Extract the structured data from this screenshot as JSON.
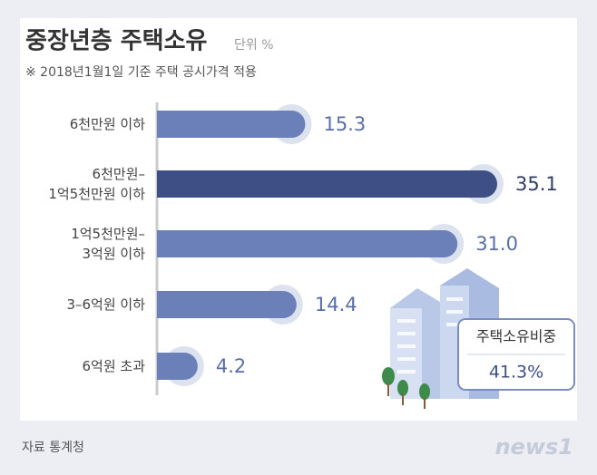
{
  "chart_data": {
    "type": "bar",
    "orientation": "horizontal",
    "title": "중장년층 주택소유",
    "unit": "단위 %",
    "subtitle": "※ 2018년1월1일 기준 주택 공시가격 적용",
    "categories": [
      "6천만원 이하",
      "6천만원–\n1억5천만원 이하",
      "1억5천만원–\n3억원 이하",
      "3–6억원 이하",
      "6억원 초과"
    ],
    "values": [
      15.3,
      35.1,
      31.0,
      14.4,
      4.2
    ],
    "value_labels": [
      "15.3",
      "35.1",
      "31.0",
      "14.4",
      "4.2"
    ],
    "colors": [
      "#6b7fb8",
      "#3d4f85",
      "#6b7fb8",
      "#6b7fb8",
      "#6b7fb8"
    ],
    "annotation": {
      "label": "주택소유비중",
      "value": 41.3,
      "value_label": "41.3%"
    },
    "source": "자료 통계청",
    "logo": "news1"
  }
}
